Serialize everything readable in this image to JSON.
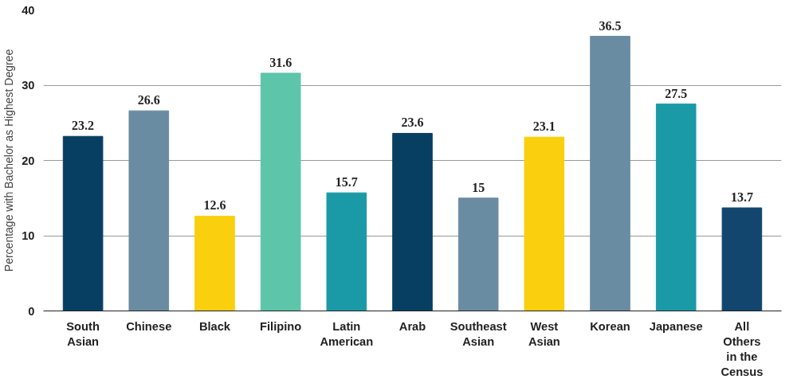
{
  "chart_data": {
    "type": "bar",
    "ylabel": "Percentage with Bachelor as Highest Degree",
    "categories": [
      "South Asian",
      "Chinese",
      "Black",
      "Filipino",
      "Latin American",
      "Arab",
      "Southeast Asian",
      "West Asian",
      "Korean",
      "Japanese",
      "All Others in the Census"
    ],
    "values": [
      23.2,
      26.6,
      12.6,
      31.6,
      15.7,
      23.6,
      15,
      23.1,
      36.5,
      27.5,
      13.7
    ],
    "colors": [
      "#073f62",
      "#6a8ca3",
      "#f9cf0e",
      "#5dc5a9",
      "#1a9aa6",
      "#073f62",
      "#6a8ca3",
      "#f9cf0e",
      "#6a8ca3",
      "#1a9aa6",
      "#12466e"
    ],
    "ylim": [
      0,
      40
    ],
    "yticks": [
      0,
      10,
      20,
      30,
      40
    ],
    "grid": "y",
    "data_labels": true
  }
}
